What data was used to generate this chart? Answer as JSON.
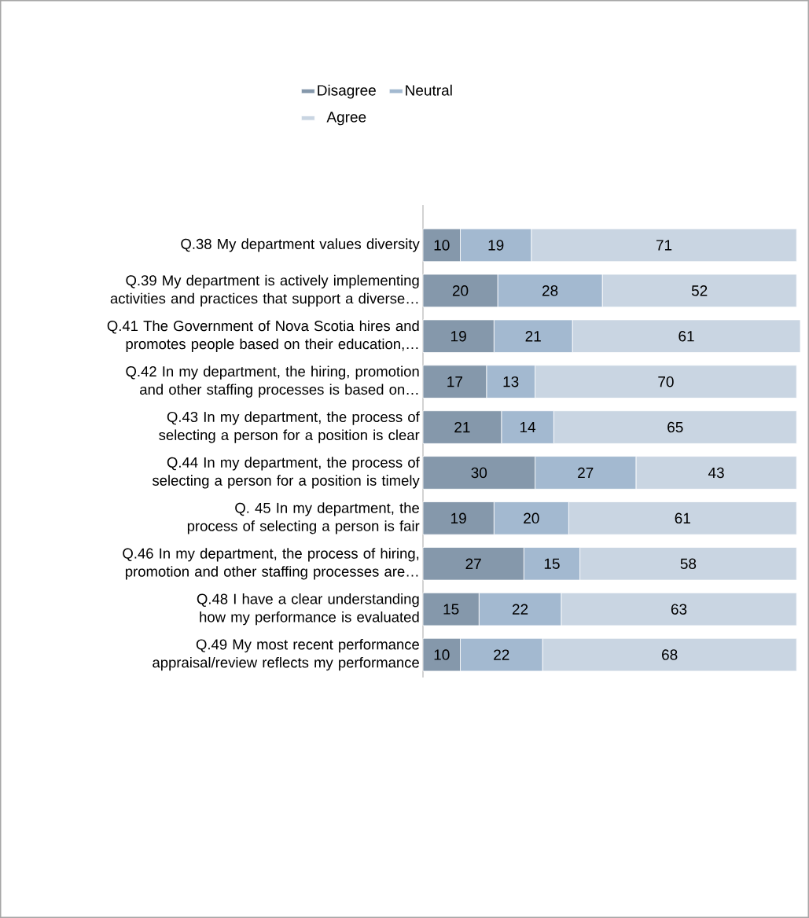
{
  "chart_data": {
    "type": "bar",
    "orientation": "horizontal",
    "stacked": true,
    "data_labels": true,
    "legend": "top",
    "categories": [
      "Q.38 My department values diversity",
      "Q.39 My department is actively implementing activities and practices that support a diverse…",
      "Q.41 The Government of Nova Scotia hires and promotes people based on their education,…",
      "Q.42 In my department, the hiring, promotion and other staffing processes is based on…",
      "Q.43 In my department, the process of selecting a person for a position is clear",
      "Q.44 In my department, the process of selecting a person for a position is timely",
      "Q. 45 In my department, the process of selecting a person is fair",
      "Q.46 In my department, the process of hiring, promotion and other staffing processes are…",
      "Q.48 I have a clear understanding how my performance is evaluated",
      "Q.49 My most recent performance appraisal/review reflects my performance"
    ],
    "series": [
      {
        "name": "Disagree",
        "color": "#8598ab",
        "values": [
          10,
          20,
          19,
          17,
          21,
          30,
          19,
          27,
          15,
          10
        ]
      },
      {
        "name": "Neutral",
        "color": "#a3b9d0",
        "values": [
          19,
          28,
          21,
          13,
          14,
          27,
          20,
          15,
          22,
          22
        ]
      },
      {
        "name": "Agree",
        "color": "#c9d5e2",
        "values": [
          71,
          52,
          61,
          70,
          65,
          43,
          61,
          58,
          63,
          68
        ]
      }
    ]
  }
}
